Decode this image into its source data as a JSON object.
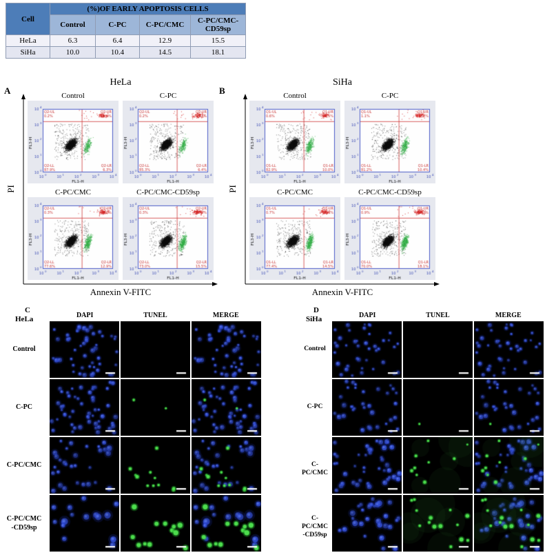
{
  "table": {
    "title": "(%)OF EARLY APOPTOSIS CELLS",
    "cell_header": "Cell",
    "columns": [
      "Control",
      "C-PC",
      "C-PC/CMC",
      "C-PC/CMC-CD59sp"
    ],
    "rows": [
      {
        "cell": "HeLa",
        "values": [
          "6.3",
          "6.4",
          "12.9",
          "15.5"
        ]
      },
      {
        "cell": "SiHa",
        "values": [
          "10.0",
          "10.4",
          "14.5",
          "18.1"
        ]
      }
    ]
  },
  "panelA": {
    "label": "A",
    "title": "HeLa",
    "y_axis": "PI",
    "x_axis": "Annexin V-FITC",
    "y_tick_label": "FL3-H",
    "x_tick_label": "FL1-H",
    "plots": [
      {
        "title": "Control",
        "q": "Q2",
        "ul": "0.2%",
        "ur": "5.6%",
        "ll": "87.9%",
        "lr": "6.3%"
      },
      {
        "title": "C-PC",
        "q": "Q2",
        "ul": "0.2%",
        "ur": "8.1%",
        "ll": "85.3%",
        "lr": "6.4%"
      },
      {
        "title": "C-PC/CMC",
        "q": "Q2",
        "ul": "0.3%",
        "ur": "9.2%",
        "ll": "77.6%",
        "lr": "12.9%"
      },
      {
        "title": "C-PC/CMC-CD59sp",
        "q": "Q2",
        "ul": "0.3%",
        "ur": "11.2%",
        "ll": "73.0%",
        "lr": "15.5%"
      }
    ]
  },
  "panelB": {
    "label": "B",
    "title": "SiHa",
    "y_axis": "PI",
    "x_axis": "Annexin V-FITC",
    "y_tick_label": "FL3-H",
    "x_tick_label": "FL1-H",
    "plots": [
      {
        "title": "Control",
        "q": "Q1",
        "ul": "0.6%",
        "ur": "6.5%",
        "ll": "82.9%",
        "lr": "10.0%"
      },
      {
        "title": "C-PC",
        "q": "Q1",
        "ul": "1.1%",
        "ur": "7.3%",
        "ll": "81.2%",
        "lr": "10.4%"
      },
      {
        "title": "C-PC/CMC",
        "q": "Q1",
        "ul": "0.7%",
        "ur": "7.4%",
        "ll": "77.4%",
        "lr": "14.5%"
      },
      {
        "title": "C-PC/CMC-CD59sp",
        "q": "Q1",
        "ul": "0.9%",
        "ur": "11.1%",
        "ll": "70.0%",
        "lr": "18.1%"
      }
    ]
  },
  "panelC": {
    "label": "C",
    "cell": "HeLa",
    "columns": [
      "DAPI",
      "TUNEL",
      "MERGE"
    ],
    "rows": [
      {
        "label": "Control"
      },
      {
        "label": "C-PC"
      },
      {
        "label": "C-PC/CMC"
      },
      {
        "label": "C-PC/CMC",
        "label2": "-CD59sp"
      }
    ]
  },
  "panelD": {
    "label": "D",
    "cell": "SiHa",
    "columns": [
      "DAPI",
      "TUNEL",
      "MERGE"
    ],
    "rows": [
      {
        "label": "Control"
      },
      {
        "label": "C-PC"
      },
      {
        "label": "C-PC/CMC"
      },
      {
        "label": "C-PC/CMC",
        "label2": "-CD59sp"
      }
    ]
  }
}
